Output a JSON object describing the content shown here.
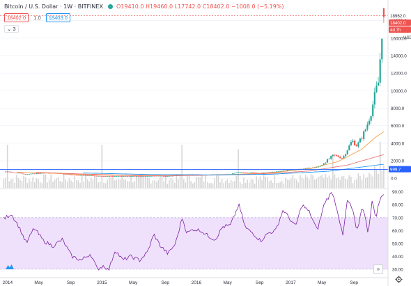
{
  "legend": {
    "symbol": "Bitcoin / U.S. Dollar · 1W · BITFINEX",
    "ohlc": "O19410.0 H19460.0 L17742.0 C18402.0 −1008.0 (−5.19%)"
  },
  "quote": {
    "bid": "18402.0",
    "spread": "1.0",
    "ask": "18403.0"
  },
  "indicators_toggle": "3",
  "scroll_label": "»",
  "chart_data": [
    {
      "type": "candlestick",
      "title": "Bitcoin / U.S. Dollar · 1W · BITFINEX",
      "ylim": [
        -1100,
        19000
      ],
      "y_ticks": [
        0,
        2000,
        4000,
        6000,
        8000,
        10000,
        12000,
        14000,
        16000,
        18000
      ],
      "y_tick_labels": [
        "0.0",
        "2000.0",
        "4000.0",
        "6000.0",
        "8000.0",
        "10000.0",
        "12000.0",
        "14000.0",
        "16000.0",
        "18000.0"
      ],
      "series": [
        {
          "type": "candlestick",
          "x_start": 2013.96,
          "x_end": 2017.985,
          "anchors": [
            [
              2013.96,
              760
            ],
            [
              2014.1,
              630
            ],
            [
              2014.2,
              450
            ],
            [
              2014.35,
              580
            ],
            [
              2014.5,
              620
            ],
            [
              2014.6,
              480
            ],
            [
              2014.8,
              330
            ],
            [
              2015.0,
              250
            ],
            [
              2015.1,
              240
            ],
            [
              2015.3,
              235
            ],
            [
              2015.45,
              250
            ],
            [
              2015.55,
              280
            ],
            [
              2015.7,
              240
            ],
            [
              2015.8,
              330
            ],
            [
              2015.9,
              430
            ],
            [
              2016.0,
              420
            ],
            [
              2016.2,
              420
            ],
            [
              2016.35,
              450
            ],
            [
              2016.45,
              690
            ],
            [
              2016.55,
              660
            ],
            [
              2016.7,
              610
            ],
            [
              2016.85,
              730
            ],
            [
              2016.95,
              900
            ],
            [
              2017.0,
              980
            ],
            [
              2017.1,
              1050
            ],
            [
              2017.2,
              1150
            ],
            [
              2017.3,
              1300
            ],
            [
              2017.38,
              2000
            ],
            [
              2017.45,
              2600
            ],
            [
              2017.5,
              2500
            ],
            [
              2017.55,
              2300
            ],
            [
              2017.6,
              3300
            ],
            [
              2017.65,
              4300
            ],
            [
              2017.7,
              3700
            ],
            [
              2017.75,
              4600
            ],
            [
              2017.8,
              5800
            ],
            [
              2017.85,
              7500
            ],
            [
              2017.9,
              9900
            ],
            [
              2017.93,
              11000
            ],
            [
              2017.955,
              15000
            ],
            [
              2017.97,
              17500
            ],
            [
              2017.985,
              18402
            ]
          ],
          "last": {
            "open": 19410.0,
            "high": 19460.0,
            "low": 17742.0,
            "close": 18402.0
          }
        },
        {
          "type": "line",
          "indicator": "moving average (orange)",
          "x_start": 2014.1,
          "anchors": [
            [
              2014.1,
              700
            ],
            [
              2014.5,
              560
            ],
            [
              2014.9,
              380
            ],
            [
              2015.4,
              280
            ],
            [
              2015.9,
              320
            ],
            [
              2016.3,
              400
            ],
            [
              2016.8,
              620
            ],
            [
              2017.2,
              1100
            ],
            [
              2017.5,
              1900
            ],
            [
              2017.75,
              3300
            ],
            [
              2017.9,
              4700
            ],
            [
              2017.985,
              5300
            ]
          ]
        },
        {
          "type": "line",
          "indicator": "moving average (red)",
          "x_start": 2014.3,
          "anchors": [
            [
              2014.3,
              680
            ],
            [
              2014.8,
              480
            ],
            [
              2015.3,
              330
            ],
            [
              2015.8,
              300
            ],
            [
              2016.3,
              380
            ],
            [
              2016.8,
              560
            ],
            [
              2017.2,
              830
            ],
            [
              2017.6,
              1500
            ],
            [
              2017.985,
              2700
            ]
          ]
        },
        {
          "type": "line",
          "indicator": "moving average (blue)",
          "x_start": 2014.8,
          "anchors": [
            [
              2014.8,
              600
            ],
            [
              2015.5,
              430
            ],
            [
              2016.2,
              380
            ],
            [
              2016.8,
              460
            ],
            [
              2017.4,
              800
            ],
            [
              2017.985,
              1600
            ]
          ]
        },
        {
          "type": "bar",
          "indicator": "volume",
          "peaks": [
            [
              2014.0,
              1.0
            ],
            [
              2015.0,
              1.0
            ],
            [
              2015.85,
              1.0
            ],
            [
              2016.45,
              0.85
            ],
            [
              2017.45,
              0.6
            ],
            [
              2017.95,
              0.75
            ]
          ]
        }
      ],
      "horizontal_line": 999.7,
      "price_labels": [
        "18962.0",
        "18402.0",
        "4d 7h",
        "USD",
        "999.7"
      ]
    },
    {
      "type": "line",
      "indicator": "RSI",
      "ylim": [
        24,
        92
      ],
      "y_ticks": [
        30,
        40,
        50,
        60,
        70,
        80,
        90
      ],
      "y_tick_labels": [
        "30.00",
        "40.00",
        "50.00",
        "60.00",
        "70.00",
        "80.00",
        "90.00"
      ],
      "band": [
        30,
        70
      ],
      "x_start": 2013.96,
      "x_end": 2017.985,
      "anchors": [
        [
          2013.96,
          69
        ],
        [
          2014.04,
          73
        ],
        [
          2014.12,
          63
        ],
        [
          2014.2,
          50
        ],
        [
          2014.28,
          62
        ],
        [
          2014.38,
          52
        ],
        [
          2014.48,
          48
        ],
        [
          2014.58,
          53
        ],
        [
          2014.68,
          40
        ],
        [
          2014.78,
          37
        ],
        [
          2014.88,
          42
        ],
        [
          2014.95,
          30
        ],
        [
          2015.02,
          33
        ],
        [
          2015.07,
          29
        ],
        [
          2015.14,
          45
        ],
        [
          2015.22,
          37
        ],
        [
          2015.3,
          40
        ],
        [
          2015.4,
          37
        ],
        [
          2015.48,
          43
        ],
        [
          2015.55,
          57
        ],
        [
          2015.62,
          48
        ],
        [
          2015.7,
          42
        ],
        [
          2015.78,
          50
        ],
        [
          2015.85,
          70
        ],
        [
          2015.9,
          58
        ],
        [
          2015.97,
          61
        ],
        [
          2016.05,
          60
        ],
        [
          2016.12,
          56
        ],
        [
          2016.2,
          53
        ],
        [
          2016.28,
          63
        ],
        [
          2016.36,
          64
        ],
        [
          2016.45,
          80
        ],
        [
          2016.52,
          62
        ],
        [
          2016.6,
          58
        ],
        [
          2016.68,
          52
        ],
        [
          2016.76,
          58
        ],
        [
          2016.84,
          60
        ],
        [
          2016.92,
          76
        ],
        [
          2017.0,
          68
        ],
        [
          2017.05,
          63
        ],
        [
          2017.12,
          80
        ],
        [
          2017.2,
          74
        ],
        [
          2017.28,
          60
        ],
        [
          2017.36,
          82
        ],
        [
          2017.44,
          90
        ],
        [
          2017.5,
          74
        ],
        [
          2017.55,
          55
        ],
        [
          2017.6,
          84
        ],
        [
          2017.66,
          75
        ],
        [
          2017.7,
          58
        ],
        [
          2017.76,
          80
        ],
        [
          2017.82,
          58
        ],
        [
          2017.86,
          83
        ],
        [
          2017.9,
          70
        ],
        [
          2017.94,
          83
        ],
        [
          2017.985,
          89
        ]
      ]
    },
    {
      "type": "time-axis",
      "labels": [
        {
          "text": "2014",
          "x": 2014.0
        },
        {
          "text": "May",
          "x": 2014.33
        },
        {
          "text": "Sep",
          "x": 2014.67
        },
        {
          "text": "2015",
          "x": 2015.0
        },
        {
          "text": "May",
          "x": 2015.33
        },
        {
          "text": "Sep",
          "x": 2015.67
        },
        {
          "text": "2016",
          "x": 2016.0
        },
        {
          "text": "May",
          "x": 2016.33
        },
        {
          "text": "Sep",
          "x": 2016.67
        },
        {
          "text": "2017",
          "x": 2017.0
        },
        {
          "text": "May",
          "x": 2017.33
        },
        {
          "text": "Sep",
          "x": 2017.67
        }
      ]
    }
  ],
  "colors": {
    "up": "#26a69a",
    "down": "#ef5350",
    "ma_orange": "#f5a04a",
    "ma_red": "#e57373",
    "ma_blue": "#2196f3",
    "hline": "#2962ff",
    "volume": "#d6d6d6",
    "rsi_line": "#7b1fa2",
    "rsi_band": "#efe1fb",
    "grid": "#f0f3fa",
    "text": "#2a2e39"
  }
}
